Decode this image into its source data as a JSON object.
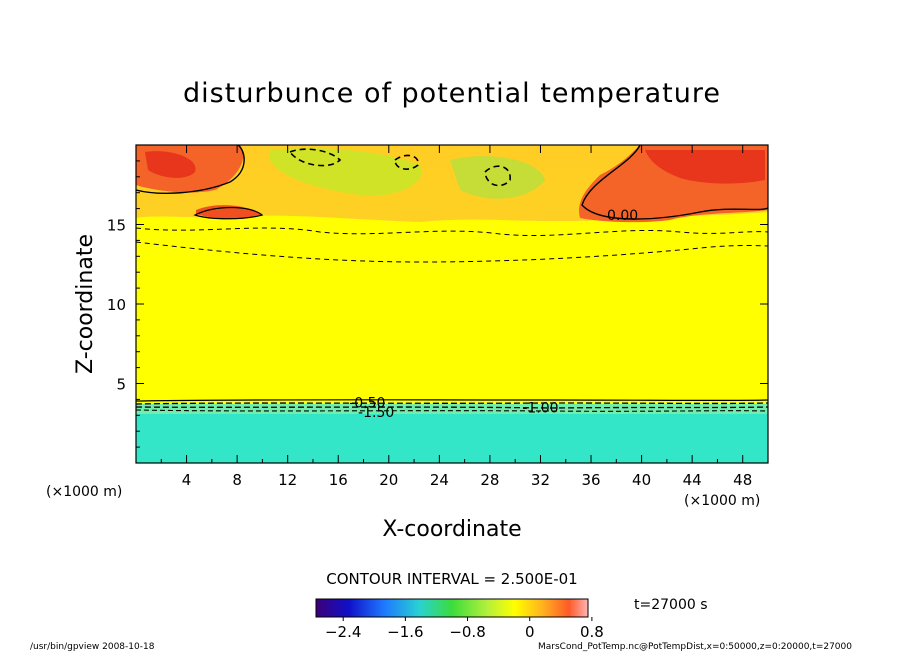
{
  "chart_data": {
    "type": "heatmap",
    "title": "disturbunce of potential temperature",
    "xlabel": "X-coordinate",
    "ylabel": "Z-coordinate",
    "x_unit_left": "(×1000 m)",
    "x_unit_right": "(×1000 m)",
    "xlim": [
      0,
      50
    ],
    "ylim": [
      0,
      20
    ],
    "xticks": [
      "4",
      "8",
      "12",
      "16",
      "20",
      "24",
      "28",
      "32",
      "36",
      "40",
      "44",
      "48"
    ],
    "yticks": [
      "5",
      "10",
      "15"
    ],
    "grid": false,
    "contour_interval_text": "CONTOUR INTERVAL = 2.500E-01",
    "time_label": "t=27000 s",
    "colorbar": {
      "range": [
        -2.75,
        0.75
      ],
      "tick_labels": [
        "−2.4",
        "−1.6",
        "−0.8",
        "0",
        "0.8"
      ],
      "tick_values": [
        -2.4,
        -1.6,
        -0.8,
        0,
        0.8
      ]
    },
    "contour_labels": [
      {
        "text": "0.00",
        "x": 38.5,
        "z": 15.6
      },
      {
        "text": "-0.50",
        "x": 18.3,
        "z": 3.8
      },
      {
        "text": "-1.50",
        "x": 19.0,
        "z": 3.2
      },
      {
        "text": "-1.00",
        "x": 32.0,
        "z": 3.5
      }
    ],
    "regions": [
      {
        "name": "lower cold layer",
        "z": [
          0,
          3.7
        ],
        "value": -1.7
      },
      {
        "name": "middle layer",
        "z": [
          3.7,
          15.5
        ],
        "value": -0.1
      },
      {
        "name": "upper left warm patch",
        "x": [
          0,
          5
        ],
        "z": [
          17.5,
          19.5
        ],
        "value": 0.6
      },
      {
        "name": "upper right warm patch",
        "x": [
          39,
          50
        ],
        "z": [
          15.5,
          19.5
        ],
        "value": 0.55
      }
    ],
    "colors": {
      "low_layer": "#33e6c8",
      "middle": "#ffff00",
      "warm": "#f05020",
      "cool_patch": "#b8e03c"
    }
  },
  "footer": {
    "left": "/usr/bin/gpview   2008-10-18",
    "right": "MarsCond_PotTemp.nc@PotTempDist,x=0:50000,z=0:20000,t=27000"
  }
}
